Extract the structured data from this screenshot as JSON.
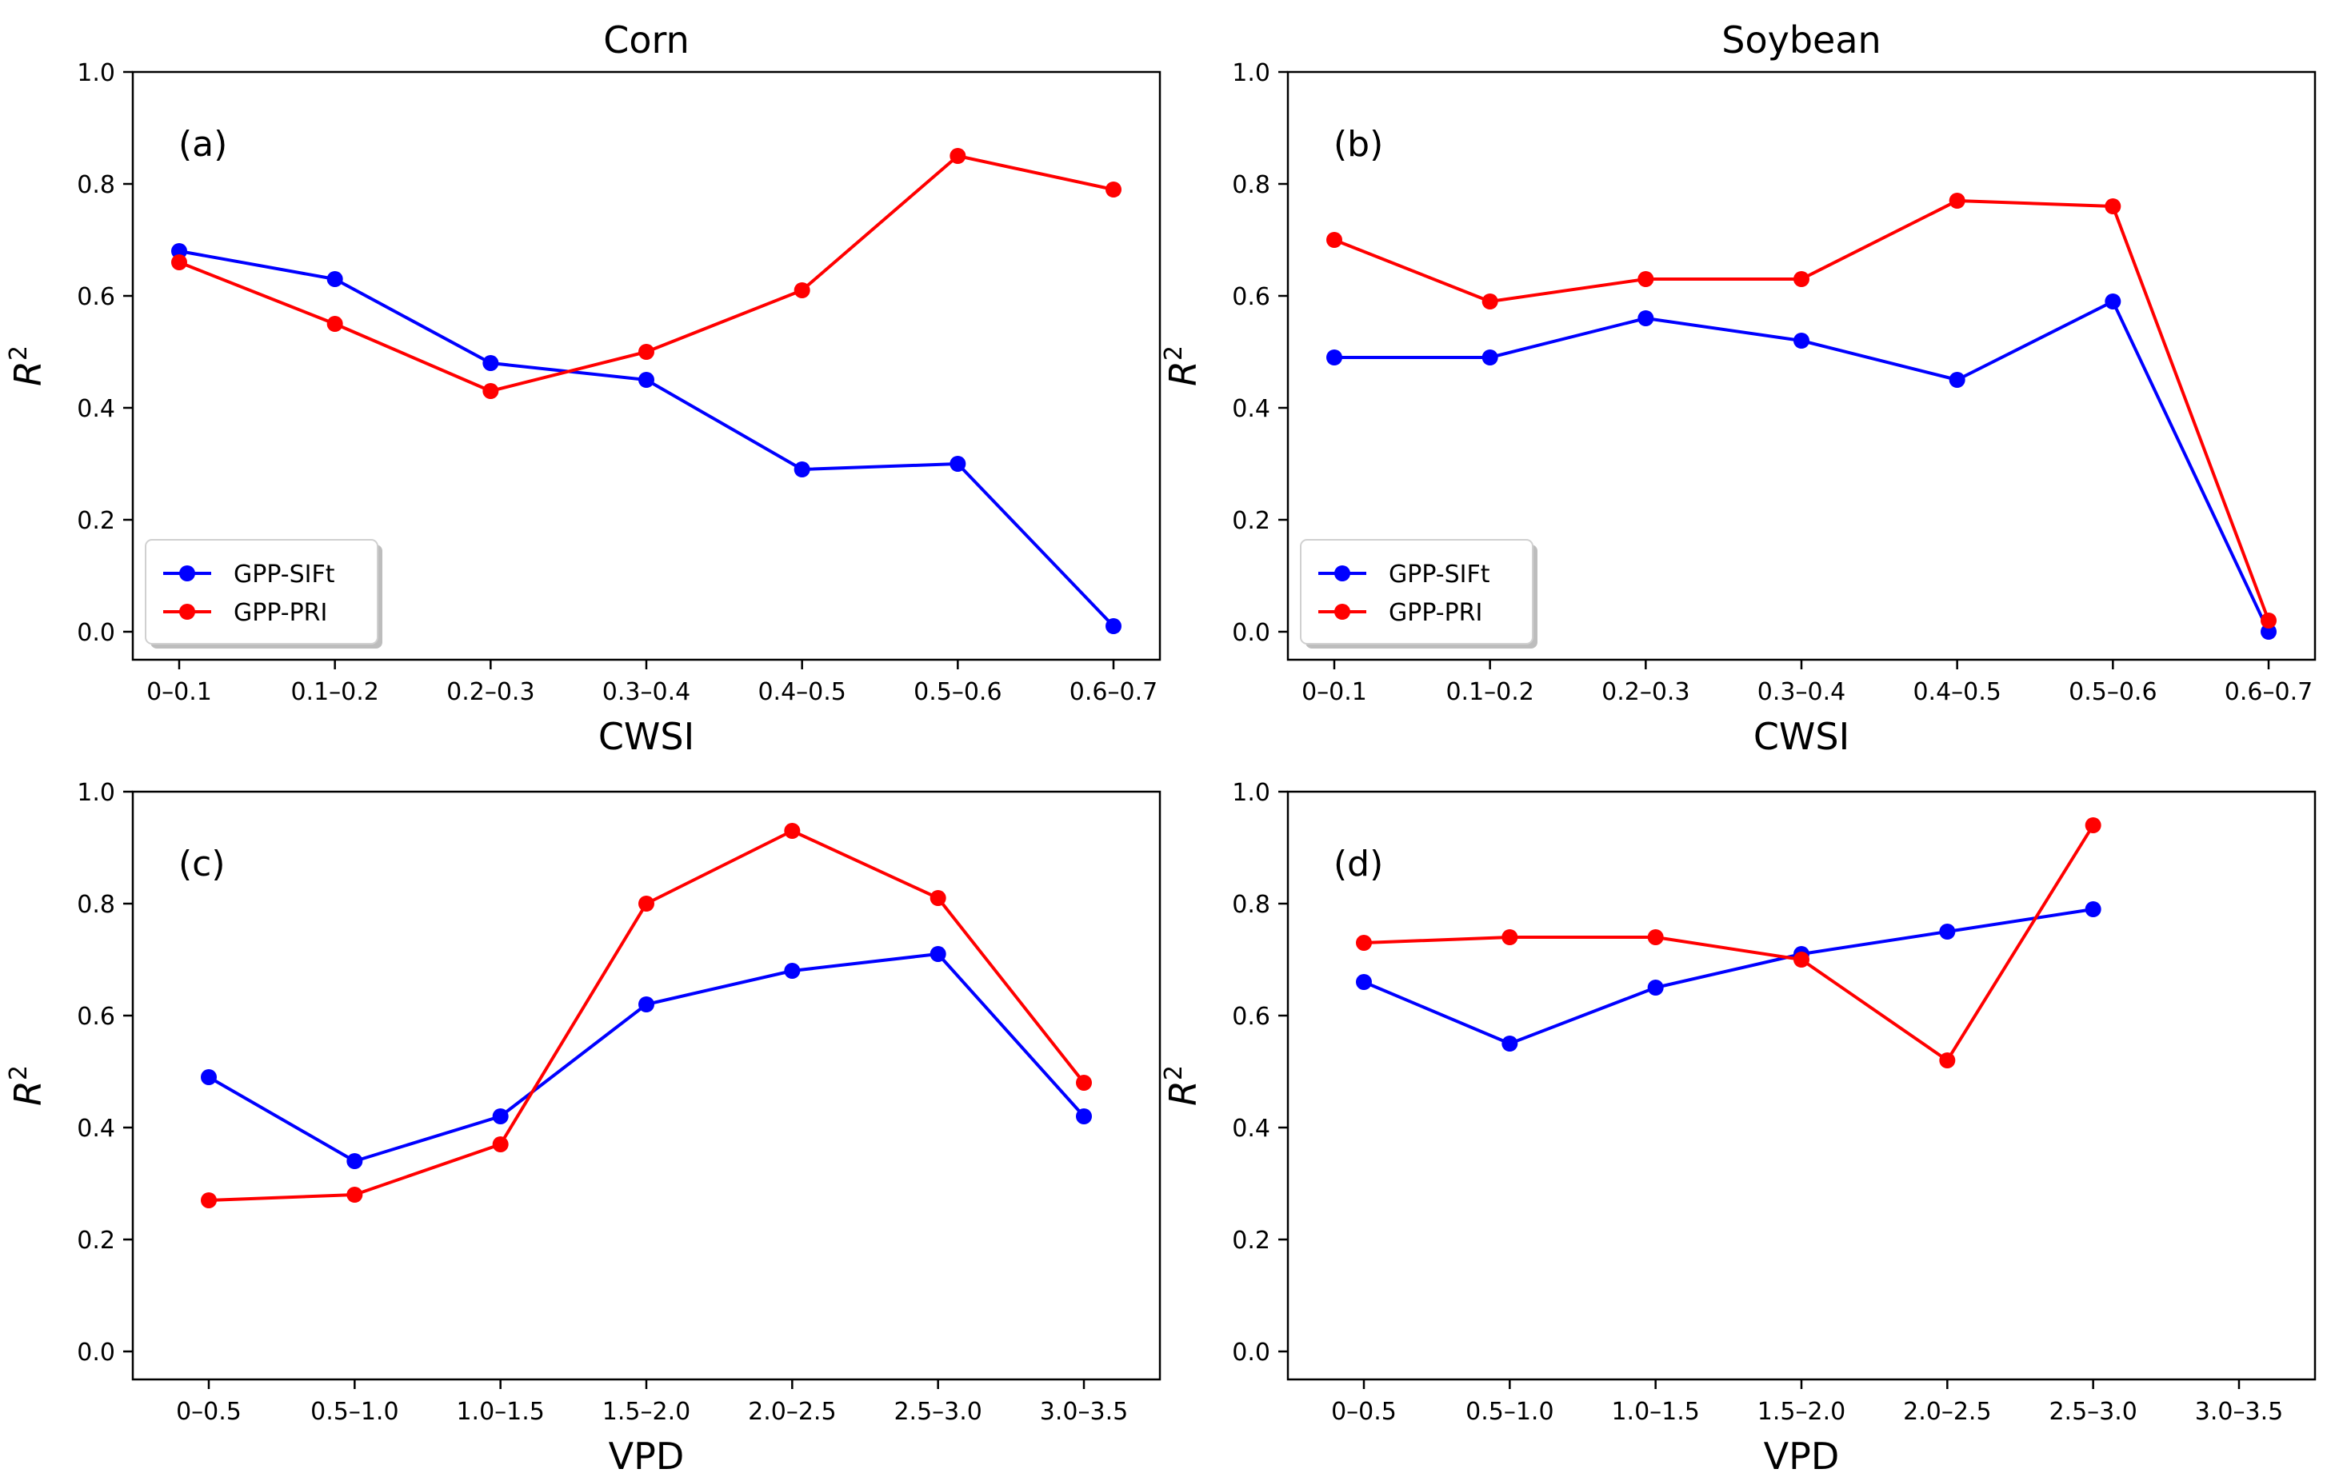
{
  "colors": {
    "blue": "#0000ff",
    "red": "#ff0000",
    "axis": "#000000",
    "background": "#ffffff"
  },
  "chart_data": [
    {
      "type": "line",
      "title": "Corn",
      "panel_label": "(a)",
      "xlabel": "CWSI",
      "ylabel": "R",
      "ylabel_superscript": "2",
      "categories": [
        "0–0.1",
        "0.1–0.2",
        "0.2–0.3",
        "0.3–0.4",
        "0.4–0.5",
        "0.5–0.6",
        "0.6–0.7"
      ],
      "ylim": [
        0,
        1
      ],
      "yticks": [
        "0.0",
        "0.2",
        "0.4",
        "0.6",
        "0.8",
        "1.0"
      ],
      "legend": "lower-left",
      "grid": false,
      "series": [
        {
          "name": "GPP-SIFt",
          "color": "#0000ff",
          "values": [
            0.68,
            0.63,
            0.48,
            0.45,
            0.29,
            0.3,
            0.01
          ]
        },
        {
          "name": "GPP-PRI",
          "color": "#ff0000",
          "values": [
            0.66,
            0.55,
            0.43,
            0.5,
            0.61,
            0.85,
            0.79
          ]
        }
      ]
    },
    {
      "type": "line",
      "title": "Soybean",
      "panel_label": "(b)",
      "xlabel": "CWSI",
      "ylabel": "R",
      "ylabel_superscript": "2",
      "categories": [
        "0–0.1",
        "0.1–0.2",
        "0.2–0.3",
        "0.3–0.4",
        "0.4–0.5",
        "0.5–0.6",
        "0.6–0.7"
      ],
      "ylim": [
        0,
        1
      ],
      "yticks": [
        "0.0",
        "0.2",
        "0.4",
        "0.6",
        "0.8",
        "1.0"
      ],
      "legend": "lower-left",
      "grid": false,
      "series": [
        {
          "name": "GPP-SIFt",
          "color": "#0000ff",
          "values": [
            0.49,
            0.49,
            0.56,
            0.52,
            0.45,
            0.59,
            0.0
          ]
        },
        {
          "name": "GPP-PRI",
          "color": "#ff0000",
          "values": [
            0.7,
            0.59,
            0.63,
            0.63,
            0.77,
            0.76,
            0.02
          ]
        }
      ]
    },
    {
      "type": "line",
      "title": "",
      "panel_label": "(c)",
      "xlabel": "VPD",
      "ylabel": "R",
      "ylabel_superscript": "2",
      "categories": [
        "0–0.5",
        "0.5–1.0",
        "1.0–1.5",
        "1.5–2.0",
        "2.0–2.5",
        "2.5–3.0",
        "3.0–3.5"
      ],
      "ylim": [
        -0.05,
        1
      ],
      "yticks": [
        "0.0",
        "0.2",
        "0.4",
        "0.6",
        "0.8",
        "1.0"
      ],
      "grid": false,
      "series": [
        {
          "color": "#0000ff",
          "values": [
            0.49,
            0.34,
            0.42,
            0.62,
            0.68,
            0.71,
            0.42
          ]
        },
        {
          "color": "#ff0000",
          "values": [
            0.27,
            0.28,
            0.37,
            0.8,
            0.93,
            0.81,
            0.48
          ]
        }
      ]
    },
    {
      "type": "line",
      "title": "",
      "panel_label": "(d)",
      "xlabel": "VPD",
      "ylabel": "R",
      "ylabel_superscript": "2",
      "categories": [
        "0–0.5",
        "0.5–1.0",
        "1.0–1.5",
        "1.5–2.0",
        "2.0–2.5",
        "2.5–3.0",
        "3.0–3.5"
      ],
      "ylim": [
        -0.05,
        1
      ],
      "yticks": [
        "0.0",
        "0.2",
        "0.4",
        "0.6",
        "0.8",
        "1.0"
      ],
      "grid": false,
      "series": [
        {
          "color": "#0000ff",
          "values": [
            0.66,
            0.55,
            0.65,
            0.71,
            0.75,
            0.79,
            null
          ]
        },
        {
          "color": "#ff0000",
          "values": [
            0.73,
            0.74,
            0.74,
            0.7,
            0.52,
            0.94,
            null
          ]
        }
      ]
    }
  ]
}
